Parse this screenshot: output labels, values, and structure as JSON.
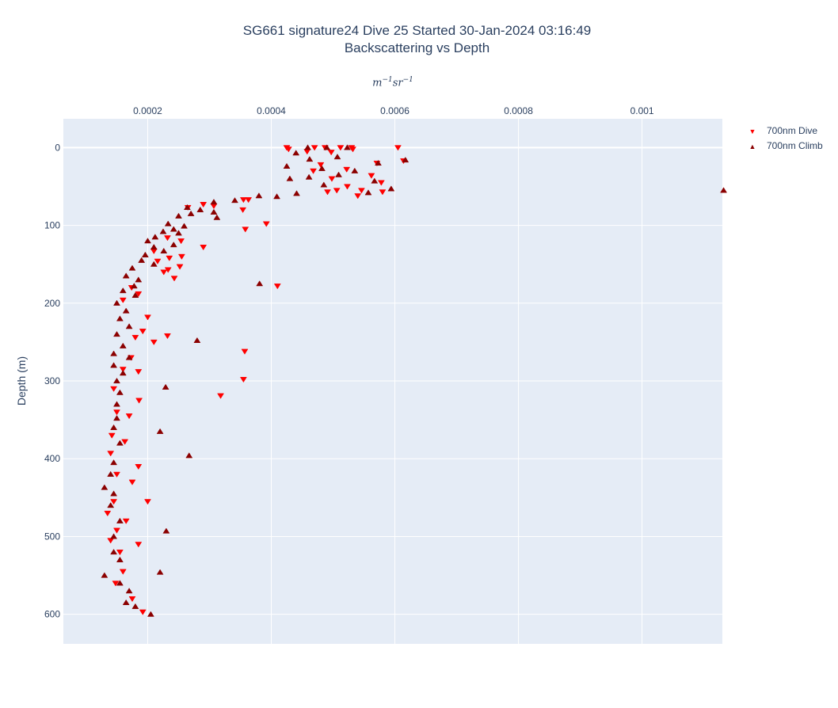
{
  "title_line1": "SG661 signature24 Dive 25 Started 30-Jan-2024 03:16:49",
  "title_line2": "Backscattering vs Depth",
  "colors": {
    "plot_bg": "#e5ecf6",
    "grid": "#ffffff",
    "dive": "#ff0000",
    "climb": "#8b0000",
    "text": "#2a3f5f"
  },
  "chart_data": {
    "type": "scatter",
    "title": "SG661 signature24 Dive 25 Started 30-Jan-2024 03:16:49 Backscattering vs Depth",
    "xlabel": "m^-1 sr^-1",
    "xlabel_parts": {
      "m": "m",
      "m_exp": "−1",
      "sr": "sr",
      "sr_exp": "−1"
    },
    "ylabel": "Depth (m)",
    "x_axis_position": "top",
    "xlim": [
      6.35e-05,
      0.00113
    ],
    "ylim": [
      638,
      -37
    ],
    "y_reversed": true,
    "xticks": [
      0.0002,
      0.0004,
      0.0006,
      0.0008,
      0.001
    ],
    "xtick_labels": [
      "0.0002",
      "0.0004",
      "0.0006",
      "0.0008",
      "0.001"
    ],
    "yticks": [
      0,
      100,
      200,
      300,
      400,
      500,
      600
    ],
    "ytick_labels": [
      "0",
      "100",
      "200",
      "300",
      "400",
      "500",
      "600"
    ],
    "grid": true,
    "legend_position": "top-right",
    "series": [
      {
        "name": "700nm Dive",
        "marker": "triangle-down",
        "color": "#ff0000",
        "points": [
          [
            0.000425,
            0
          ],
          [
            0.00047,
            0
          ],
          [
            0.000487,
            0
          ],
          [
            0.000512,
            0
          ],
          [
            0.00053,
            0
          ],
          [
            0.000605,
            0
          ],
          [
            0.000428,
            2
          ],
          [
            0.000532,
            2
          ],
          [
            0.000458,
            5
          ],
          [
            0.000497,
            6
          ],
          [
            0.000614,
            17
          ],
          [
            0.000571,
            20
          ],
          [
            0.00048,
            22
          ],
          [
            0.000522,
            28
          ],
          [
            0.000468,
            30
          ],
          [
            0.000562,
            36
          ],
          [
            0.000498,
            40
          ],
          [
            0.000578,
            45
          ],
          [
            0.000523,
            50
          ],
          [
            0.000546,
            55
          ],
          [
            0.000506,
            55
          ],
          [
            0.000491,
            57
          ],
          [
            0.00054,
            62
          ],
          [
            0.00058,
            57
          ],
          [
            0.000355,
            67
          ],
          [
            0.000363,
            67
          ],
          [
            0.00029,
            73
          ],
          [
            0.000307,
            75
          ],
          [
            0.000265,
            77
          ],
          [
            0.000354,
            80
          ],
          [
            0.000392,
            98
          ],
          [
            0.000358,
            105
          ],
          [
            0.000232,
            116
          ],
          [
            0.000254,
            120
          ],
          [
            0.00029,
            128
          ],
          [
            0.00021,
            133
          ],
          [
            0.000235,
            142
          ],
          [
            0.000255,
            140
          ],
          [
            0.000216,
            146
          ],
          [
            0.000252,
            153
          ],
          [
            0.000233,
            157
          ],
          [
            0.000226,
            160
          ],
          [
            0.000243,
            168
          ],
          [
            0.00041,
            178
          ],
          [
            0.000174,
            180
          ],
          [
            0.000185,
            188
          ],
          [
            0.00016,
            196
          ],
          [
            0.0002,
            218
          ],
          [
            0.000192,
            236
          ],
          [
            0.000232,
            242
          ],
          [
            0.00021,
            250
          ],
          [
            0.00018,
            244
          ],
          [
            0.000173,
            270
          ],
          [
            0.000357,
            262
          ],
          [
            0.000185,
            288
          ],
          [
            0.00016,
            285
          ],
          [
            0.000355,
            298
          ],
          [
            0.000145,
            310
          ],
          [
            0.000186,
            325
          ],
          [
            0.000318,
            319
          ],
          [
            0.00015,
            340
          ],
          [
            0.00017,
            345
          ],
          [
            0.000142,
            370
          ],
          [
            0.000163,
            378
          ],
          [
            0.00014,
            393
          ],
          [
            0.000185,
            410
          ],
          [
            0.00015,
            420
          ],
          [
            0.000175,
            430
          ],
          [
            0.000145,
            455
          ],
          [
            0.0002,
            455
          ],
          [
            0.000135,
            470
          ],
          [
            0.000165,
            480
          ],
          [
            0.00015,
            492
          ],
          [
            0.00014,
            505
          ],
          [
            0.000155,
            520
          ],
          [
            0.000185,
            510
          ],
          [
            0.00016,
            545
          ],
          [
            0.000148,
            560
          ],
          [
            0.000175,
            580
          ],
          [
            0.000192,
            597
          ]
        ]
      },
      {
        "name": "700nm Climb",
        "marker": "triangle-up",
        "color": "#8b0000",
        "points": [
          [
            0.000459,
            0
          ],
          [
            0.00049,
            0
          ],
          [
            0.000523,
            0
          ],
          [
            0.00044,
            7
          ],
          [
            0.000507,
            12
          ],
          [
            0.000462,
            15
          ],
          [
            0.000617,
            16
          ],
          [
            0.000573,
            20
          ],
          [
            0.000425,
            24
          ],
          [
            0.000482,
            27
          ],
          [
            0.000535,
            30
          ],
          [
            0.000509,
            35
          ],
          [
            0.000461,
            38
          ],
          [
            0.00043,
            40
          ],
          [
            0.000567,
            43
          ],
          [
            0.000485,
            48
          ],
          [
            0.000594,
            53
          ],
          [
            0.000557,
            58
          ],
          [
            0.000441,
            59
          ],
          [
            0.000409,
            63
          ],
          [
            0.001132,
            55
          ],
          [
            0.00038,
            62
          ],
          [
            0.000341,
            68
          ],
          [
            0.000307,
            70
          ],
          [
            0.000264,
            77
          ],
          [
            0.000285,
            80
          ],
          [
            0.000307,
            83
          ],
          [
            0.000312,
            90
          ],
          [
            0.00027,
            85
          ],
          [
            0.00025,
            88
          ],
          [
            0.000233,
            98
          ],
          [
            0.000259,
            101
          ],
          [
            0.000242,
            105
          ],
          [
            0.000225,
            108
          ],
          [
            0.000212,
            115
          ],
          [
            0.00025,
            110
          ],
          [
            0.0002,
            120
          ],
          [
            0.000242,
            125
          ],
          [
            0.00021,
            128
          ],
          [
            0.000226,
            133
          ],
          [
            0.000196,
            138
          ],
          [
            0.00019,
            145
          ],
          [
            0.00021,
            150
          ],
          [
            0.000175,
            155
          ],
          [
            0.000165,
            165
          ],
          [
            0.000185,
            170
          ],
          [
            0.000178,
            178
          ],
          [
            0.00016,
            184
          ],
          [
            0.00018,
            190
          ],
          [
            0.000381,
            175
          ],
          [
            0.00015,
            200
          ],
          [
            0.000165,
            210
          ],
          [
            0.000155,
            220
          ],
          [
            0.00017,
            230
          ],
          [
            0.00015,
            240
          ],
          [
            0.00016,
            255
          ],
          [
            0.00028,
            248
          ],
          [
            0.000145,
            265
          ],
          [
            0.00017,
            270
          ],
          [
            0.000145,
            280
          ],
          [
            0.00016,
            290
          ],
          [
            0.00015,
            300
          ],
          [
            0.000229,
            308
          ],
          [
            0.000155,
            315
          ],
          [
            0.00015,
            330
          ],
          [
            0.00015,
            348
          ],
          [
            0.00022,
            365
          ],
          [
            0.000145,
            360
          ],
          [
            0.000155,
            380
          ],
          [
            0.000267,
            396
          ],
          [
            0.000145,
            405
          ],
          [
            0.00014,
            420
          ],
          [
            0.00013,
            437
          ],
          [
            0.000145,
            445
          ],
          [
            0.00014,
            460
          ],
          [
            0.000155,
            480
          ],
          [
            0.00023,
            493
          ],
          [
            0.000145,
            500
          ],
          [
            0.000145,
            520
          ],
          [
            0.000155,
            530
          ],
          [
            0.00022,
            546
          ],
          [
            0.00013,
            550
          ],
          [
            0.000155,
            560
          ],
          [
            0.00017,
            570
          ],
          [
            0.000165,
            585
          ],
          [
            0.000205,
            600
          ],
          [
            0.00018,
            590
          ]
        ]
      }
    ]
  }
}
